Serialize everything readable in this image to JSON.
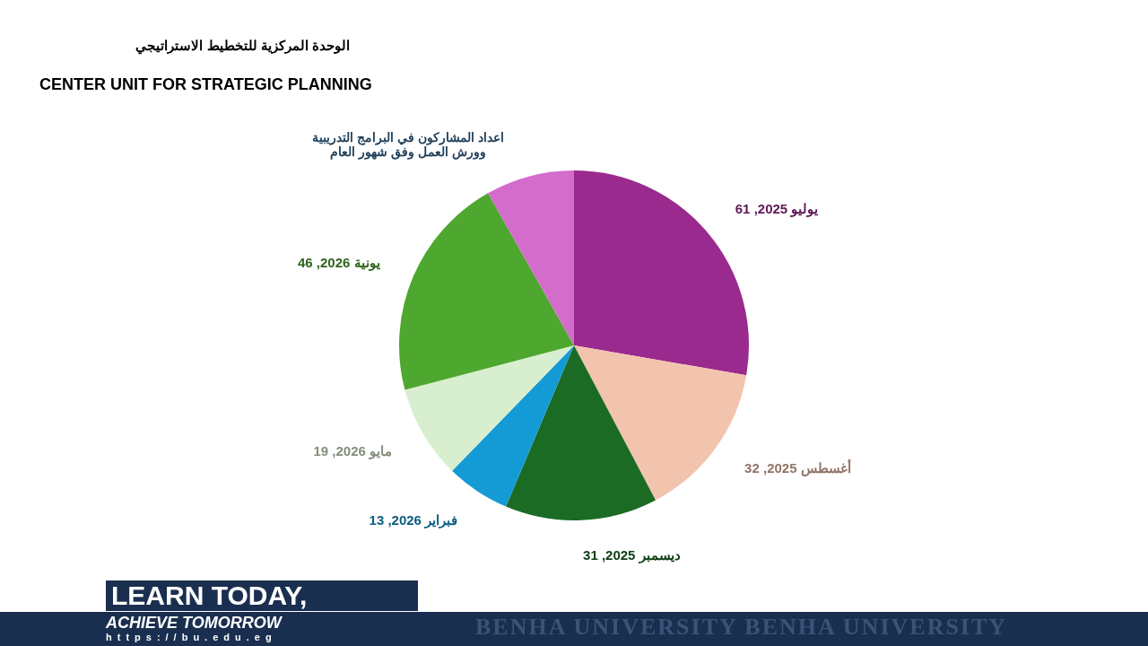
{
  "chart_data": {
    "type": "pie",
    "title": "اعداد المشاركون في البرامج التدريبية\nوورش العمل  وفق شهور العام",
    "categories": [
      "يوليو 2025",
      "أغسطس 2025",
      "ديسمبر 2025",
      "فبراير 2026",
      "مايو 2026",
      "يونية 2026",
      null
    ],
    "values": [
      61,
      32,
      31,
      13,
      19,
      46,
      18
    ],
    "value_labels": [
      "61",
      "32",
      "31",
      "13",
      "19",
      "46",
      null
    ],
    "colors": [
      "#9b2a8e",
      "#f2c4ad",
      "#1b6b24",
      "#149bd6",
      "#d8efcf",
      "#4ea72e",
      "#d46ccb"
    ],
    "legend": false,
    "annotations": [
      "الوحدة المركزية للتخطيط الاستراتيجي",
      "CENTER UNIT FOR STRATEGIC PLANNING",
      "LEARN TODAY,",
      "ACHIEVE TOMORROW",
      "https://bu.edu.eg",
      "BENHA UNIVERSITY BENHA UNIVERSITY"
    ]
  }
}
